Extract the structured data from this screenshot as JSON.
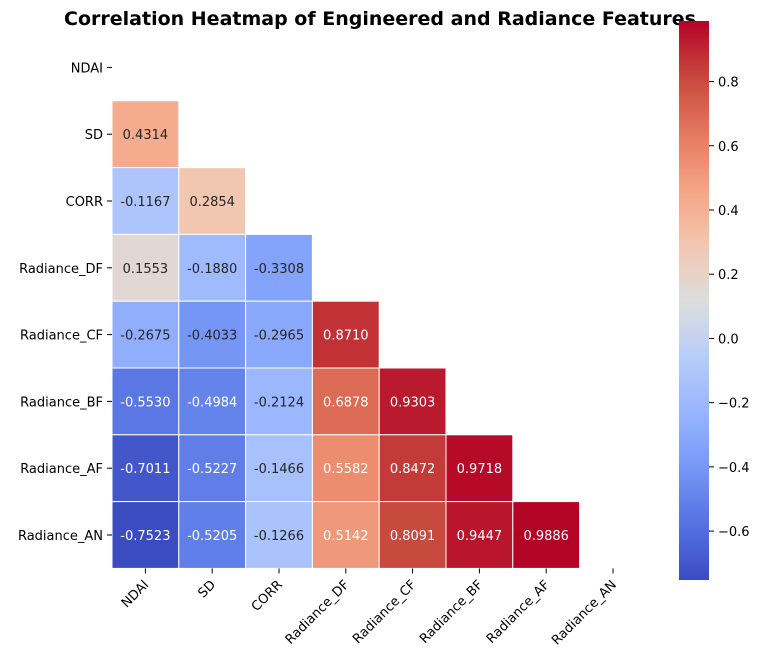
{
  "chart_data": {
    "type": "heatmap",
    "title": "Correlation Heatmap of Engineered and Radiance Features",
    "labels": [
      "NDAI",
      "SD",
      "CORR",
      "Radiance_DF",
      "Radiance_CF",
      "Radiance_BF",
      "Radiance_AF",
      "Radiance_AN"
    ],
    "mask": "upper-triangle-including-diagonal",
    "rows": [
      {
        "label": "NDAI",
        "values": []
      },
      {
        "label": "SD",
        "values": [
          0.4314
        ]
      },
      {
        "label": "CORR",
        "values": [
          -0.1167,
          0.2854
        ]
      },
      {
        "label": "Radiance_DF",
        "values": [
          0.1553,
          -0.188,
          -0.3308
        ]
      },
      {
        "label": "Radiance_CF",
        "values": [
          -0.2675,
          -0.4033,
          -0.2965,
          0.871
        ]
      },
      {
        "label": "Radiance_BF",
        "values": [
          -0.553,
          -0.4984,
          -0.2124,
          0.6878,
          0.9303
        ]
      },
      {
        "label": "Radiance_AF",
        "values": [
          -0.7011,
          -0.5227,
          -0.1466,
          0.5582,
          0.8472,
          0.9718
        ]
      },
      {
        "label": "Radiance_AN",
        "values": [
          -0.7523,
          -0.5205,
          -0.1266,
          0.5142,
          0.8091,
          0.9447,
          0.9886
        ]
      }
    ],
    "value_labels": [
      [],
      [
        "0.4314"
      ],
      [
        "-0.1167",
        "0.2854"
      ],
      [
        "0.1553",
        "-0.1880",
        "-0.3308"
      ],
      [
        "-0.2675",
        "-0.4033",
        "-0.2965",
        "0.8710"
      ],
      [
        "-0.5530",
        "-0.4984",
        "-0.2124",
        "0.6878",
        "0.9303"
      ],
      [
        "-0.7011",
        "-0.5227",
        "-0.1466",
        "0.5582",
        "0.8472",
        "0.9718"
      ],
      [
        "-0.7523",
        "-0.5205",
        "-0.1266",
        "0.5142",
        "0.8091",
        "0.9447",
        "0.9886"
      ]
    ],
    "colormap": "coolwarm",
    "colorbar": {
      "range": [
        -0.7523,
        0.9886
      ],
      "ticks": [
        -0.6,
        -0.4,
        -0.2,
        0.0,
        0.2,
        0.4,
        0.6,
        0.8
      ],
      "tick_labels": [
        "−0.6",
        "−0.4",
        "−0.2",
        "0.0",
        "0.2",
        "0.4",
        "0.6",
        "0.8"
      ]
    }
  }
}
